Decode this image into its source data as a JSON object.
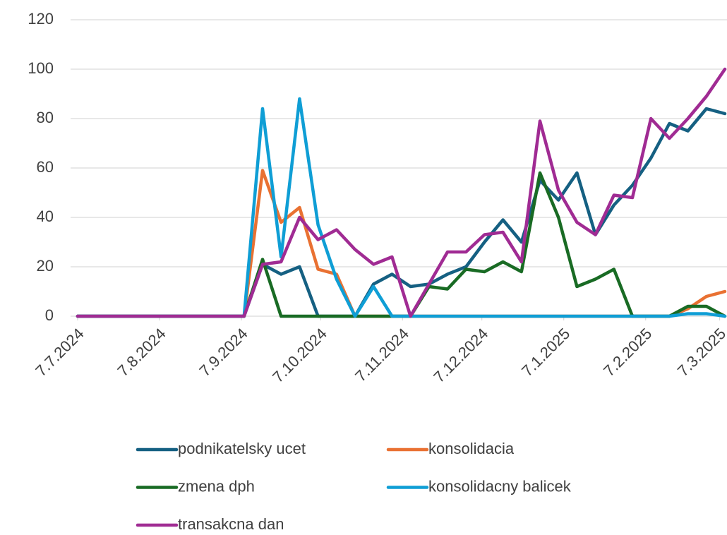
{
  "chart_data": {
    "type": "line",
    "x": [
      "7.7.2024",
      "14.7.2024",
      "21.7.2024",
      "28.7.2024",
      "4.8.2024",
      "11.8.2024",
      "18.8.2024",
      "25.8.2024",
      "1.9.2024",
      "8.9.2024",
      "15.9.2024",
      "22.9.2024",
      "29.9.2024",
      "6.10.2024",
      "13.10.2024",
      "20.10.2024",
      "27.10.2024",
      "3.11.2024",
      "10.11.2024",
      "17.11.2024",
      "24.11.2024",
      "1.12.2024",
      "8.12.2024",
      "15.12.2024",
      "22.12.2024",
      "29.12.2024",
      "5.1.2025",
      "12.1.2025",
      "19.1.2025",
      "26.1.2025",
      "2.2.2025",
      "9.2.2025",
      "16.2.2025",
      "23.2.2025",
      "2.3.2025",
      "9.3.2025"
    ],
    "xlim": [
      "7.7.2024",
      "9.3.2025"
    ],
    "xticks": [
      "7.7.2024",
      "7.8.2024",
      "7.9.2024",
      "7.10.2024",
      "7.11.2024",
      "7.12.2024",
      "7.1.2025",
      "7.2.2025",
      "7.3.2025"
    ],
    "ylim": [
      0,
      120
    ],
    "yticks": [
      0,
      20,
      40,
      60,
      80,
      100,
      120
    ],
    "grid": true,
    "series": [
      {
        "name": "podnikatelsky ucet",
        "color": "#156082",
        "values": [
          0,
          0,
          0,
          0,
          0,
          0,
          0,
          0,
          0,
          0,
          21,
          17,
          20,
          0,
          0,
          0,
          13,
          17,
          12,
          13,
          17,
          20,
          30,
          39,
          30,
          55,
          47,
          58,
          33,
          45,
          53,
          64,
          78,
          75,
          84,
          82
        ]
      },
      {
        "name": "konsolidacia",
        "color": "#e97132",
        "values": [
          0,
          0,
          0,
          0,
          0,
          0,
          0,
          0,
          0,
          0,
          59,
          38,
          44,
          19,
          17,
          0,
          0,
          0,
          0,
          0,
          0,
          0,
          0,
          0,
          0,
          0,
          0,
          0,
          0,
          0,
          0,
          0,
          0,
          3,
          8,
          10
        ]
      },
      {
        "name": "zmena dph",
        "color": "#196b24",
        "values": [
          0,
          0,
          0,
          0,
          0,
          0,
          0,
          0,
          0,
          0,
          23,
          0,
          0,
          0,
          0,
          0,
          0,
          0,
          0,
          12,
          11,
          19,
          18,
          22,
          18,
          58,
          40,
          12,
          15,
          19,
          0,
          0,
          0,
          4,
          4,
          0
        ]
      },
      {
        "name": "konsolidacny balicek",
        "color": "#0f9ed5",
        "values": [
          0,
          0,
          0,
          0,
          0,
          0,
          0,
          0,
          0,
          0,
          84,
          24,
          88,
          37,
          15,
          0,
          12,
          0,
          0,
          0,
          0,
          0,
          0,
          0,
          0,
          0,
          0,
          0,
          0,
          0,
          0,
          0,
          0,
          1,
          1,
          0
        ]
      },
      {
        "name": "transakcna dan",
        "color": "#a02b93",
        "values": [
          0,
          0,
          0,
          0,
          0,
          0,
          0,
          0,
          0,
          0,
          21,
          22,
          40,
          31,
          35,
          27,
          21,
          24,
          0,
          13,
          26,
          26,
          33,
          34,
          22,
          79,
          51,
          38,
          33,
          49,
          48,
          80,
          72,
          80,
          89,
          100
        ]
      }
    ]
  }
}
